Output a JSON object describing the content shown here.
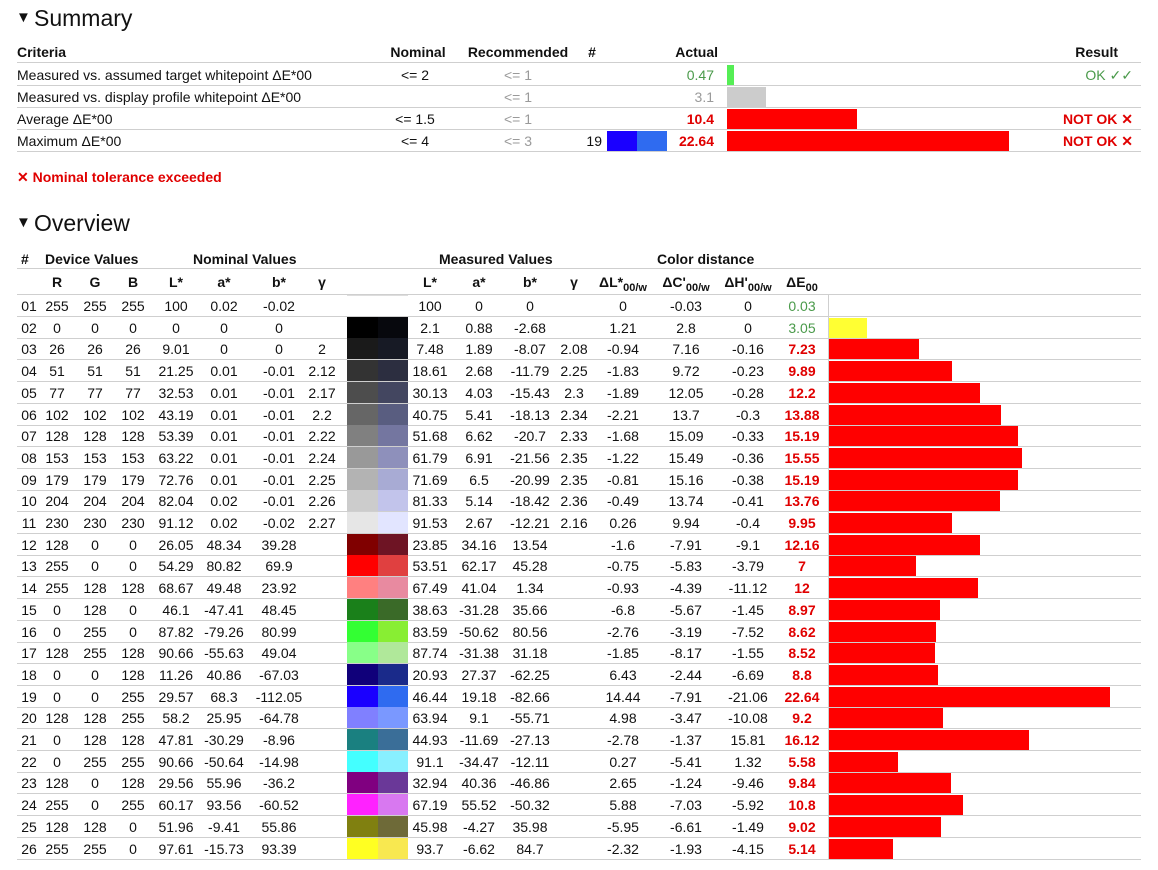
{
  "summary": {
    "title": "Summary",
    "headers": {
      "criteria": "Criteria",
      "nominal": "Nominal",
      "recommended": "Recommended",
      "num": "#",
      "actual": "Actual",
      "result": "Result"
    },
    "rows": [
      {
        "criteria": "Measured vs. assumed target whitepoint ΔE*00",
        "nominal": "<= 2",
        "recommended": "<= 1",
        "num": "",
        "actual": "0.47",
        "result": "OK ✓✓",
        "status": "ok",
        "bar_fraction": 0.025,
        "bar_color": "#55ee55"
      },
      {
        "criteria": "Measured vs. display profile whitepoint ΔE*00",
        "nominal": "",
        "recommended": "<= 1",
        "num": "",
        "actual": "3.1",
        "result": "",
        "status": "info",
        "bar_fraction": 0.14,
        "bar_color": "#cccccc"
      },
      {
        "criteria": "Average ΔE*00",
        "nominal": "<= 1.5",
        "recommended": "<= 1",
        "num": "",
        "actual": "10.4",
        "result": "NOT OK ✕",
        "status": "fail",
        "bar_fraction": 0.46,
        "bar_color": "#ff0000"
      },
      {
        "criteria": "Maximum ΔE*00",
        "nominal": "<= 4",
        "recommended": "<= 3",
        "num": "19",
        "actual": "22.64",
        "result": "NOT OK ✕",
        "status": "fail",
        "bar_fraction": 1.0,
        "bar_color": "#ff0000",
        "swatch_device": "#1a00ff",
        "swatch_measured": "#2f6bf0"
      }
    ],
    "warning": "✕ Nominal tolerance exceeded"
  },
  "overview": {
    "title": "Overview",
    "group_headers": {
      "num": "#",
      "device": "Device Values",
      "nominal": "Nominal Values",
      "measured": "Measured Values",
      "distance": "Color distance"
    },
    "sub_headers": {
      "R": "R",
      "G": "G",
      "B": "B",
      "L": "L*",
      "a": "a*",
      "b": "b*",
      "gamma": "γ",
      "mL": "L*",
      "ma": "a*",
      "mb": "b*",
      "mgamma": "γ",
      "dL": "ΔL*",
      "dC": "ΔC'",
      "dH": "ΔH'",
      "dE": "ΔE",
      "sub00w": "00/w",
      "sub00": "00"
    },
    "rows": [
      {
        "n": "01",
        "R": "255",
        "G": "255",
        "B": "255",
        "L": "100",
        "a": "0.02",
        "b": "-0.02",
        "g": "",
        "mL": "100",
        "ma": "0",
        "mb": "0",
        "mg": "",
        "dL": "0",
        "dC": "-0.03",
        "dH": "0",
        "dE": "0.03",
        "de_val": 0.03,
        "ok": true,
        "c1": "#ffffff",
        "c2": "#ffffff"
      },
      {
        "n": "02",
        "R": "0",
        "G": "0",
        "B": "0",
        "L": "0",
        "a": "0",
        "b": "0",
        "g": "",
        "mL": "2.1",
        "ma": "0.88",
        "mb": "-2.68",
        "mg": "",
        "dL": "1.21",
        "dC": "2.8",
        "dH": "0",
        "dE": "3.05",
        "de_val": 3.05,
        "ok": true,
        "c1": "#000000",
        "c2": "#07080d",
        "barColor": "#ffff33"
      },
      {
        "n": "03",
        "R": "26",
        "G": "26",
        "B": "26",
        "L": "9.01",
        "a": "0",
        "b": "0",
        "g": "2",
        "mL": "7.48",
        "ma": "1.89",
        "mb": "-8.07",
        "mg": "2.08",
        "dL": "-0.94",
        "dC": "7.16",
        "dH": "-0.16",
        "dE": "7.23",
        "de_val": 7.23,
        "ok": false,
        "c1": "#1a1a1a",
        "c2": "#171a25"
      },
      {
        "n": "04",
        "R": "51",
        "G": "51",
        "B": "51",
        "L": "21.25",
        "a": "0.01",
        "b": "-0.01",
        "g": "2.12",
        "mL": "18.61",
        "ma": "2.68",
        "mb": "-11.79",
        "mg": "2.25",
        "dL": "-1.83",
        "dC": "9.72",
        "dH": "-0.23",
        "dE": "9.89",
        "de_val": 9.89,
        "ok": false,
        "c1": "#333333",
        "c2": "#2c2e40"
      },
      {
        "n": "05",
        "R": "77",
        "G": "77",
        "B": "77",
        "L": "32.53",
        "a": "0.01",
        "b": "-0.01",
        "g": "2.17",
        "mL": "30.13",
        "ma": "4.03",
        "mb": "-15.43",
        "mg": "2.3",
        "dL": "-1.89",
        "dC": "12.05",
        "dH": "-0.28",
        "dE": "12.2",
        "de_val": 12.2,
        "ok": false,
        "c1": "#4d4d4d",
        "c2": "#434660"
      },
      {
        "n": "06",
        "R": "102",
        "G": "102",
        "B": "102",
        "L": "43.19",
        "a": "0.01",
        "b": "-0.01",
        "g": "2.2",
        "mL": "40.75",
        "ma": "5.41",
        "mb": "-18.13",
        "mg": "2.34",
        "dL": "-2.21",
        "dC": "13.7",
        "dH": "-0.3",
        "dE": "13.88",
        "de_val": 13.88,
        "ok": false,
        "c1": "#666666",
        "c2": "#595d80"
      },
      {
        "n": "07",
        "R": "128",
        "G": "128",
        "B": "128",
        "L": "53.39",
        "a": "0.01",
        "b": "-0.01",
        "g": "2.22",
        "mL": "51.68",
        "ma": "6.62",
        "mb": "-20.7",
        "mg": "2.33",
        "dL": "-1.68",
        "dC": "15.09",
        "dH": "-0.33",
        "dE": "15.19",
        "de_val": 15.19,
        "ok": false,
        "c1": "#808080",
        "c2": "#7476a0"
      },
      {
        "n": "08",
        "R": "153",
        "G": "153",
        "B": "153",
        "L": "63.22",
        "a": "0.01",
        "b": "-0.01",
        "g": "2.24",
        "mL": "61.79",
        "ma": "6.91",
        "mb": "-21.56",
        "mg": "2.35",
        "dL": "-1.22",
        "dC": "15.49",
        "dH": "-0.36",
        "dE": "15.55",
        "de_val": 15.55,
        "ok": false,
        "c1": "#999999",
        "c2": "#8e90bb"
      },
      {
        "n": "09",
        "R": "179",
        "G": "179",
        "B": "179",
        "L": "72.76",
        "a": "0.01",
        "b": "-0.01",
        "g": "2.25",
        "mL": "71.69",
        "ma": "6.5",
        "mb": "-20.99",
        "mg": "2.35",
        "dL": "-0.81",
        "dC": "15.16",
        "dH": "-0.38",
        "dE": "15.19",
        "de_val": 15.19,
        "ok": false,
        "c1": "#b3b3b3",
        "c2": "#a8abd4"
      },
      {
        "n": "10",
        "R": "204",
        "G": "204",
        "B": "204",
        "L": "82.04",
        "a": "0.02",
        "b": "-0.01",
        "g": "2.26",
        "mL": "81.33",
        "ma": "5.14",
        "mb": "-18.42",
        "mg": "2.36",
        "dL": "-0.49",
        "dC": "13.74",
        "dH": "-0.41",
        "dE": "13.76",
        "de_val": 13.76,
        "ok": false,
        "c1": "#cccccc",
        "c2": "#c2c4eb"
      },
      {
        "n": "11",
        "R": "230",
        "G": "230",
        "B": "230",
        "L": "91.12",
        "a": "0.02",
        "b": "-0.02",
        "g": "2.27",
        "mL": "91.53",
        "ma": "2.67",
        "mb": "-12.21",
        "mg": "2.16",
        "dL": "0.26",
        "dC": "9.94",
        "dH": "-0.4",
        "dE": "9.95",
        "de_val": 9.95,
        "ok": false,
        "c1": "#e6e6e6",
        "c2": "#e2e5ff"
      },
      {
        "n": "12",
        "R": "128",
        "G": "0",
        "B": "0",
        "L": "26.05",
        "a": "48.34",
        "b": "39.28",
        "g": "",
        "mL": "23.85",
        "ma": "34.16",
        "mb": "13.54",
        "mg": "",
        "dL": "-1.6",
        "dC": "-7.91",
        "dH": "-9.1",
        "dE": "12.16",
        "de_val": 12.16,
        "ok": false,
        "c1": "#800000",
        "c2": "#6e1424"
      },
      {
        "n": "13",
        "R": "255",
        "G": "0",
        "B": "0",
        "L": "54.29",
        "a": "80.82",
        "b": "69.9",
        "g": "",
        "mL": "53.51",
        "ma": "62.17",
        "mb": "45.28",
        "mg": "",
        "dL": "-0.75",
        "dC": "-5.83",
        "dH": "-3.79",
        "dE": "7",
        "de_val": 7,
        "ok": false,
        "c1": "#ff0000",
        "c2": "#e04040"
      },
      {
        "n": "14",
        "R": "255",
        "G": "128",
        "B": "128",
        "L": "68.67",
        "a": "49.48",
        "b": "23.92",
        "g": "",
        "mL": "67.49",
        "ma": "41.04",
        "mb": "1.34",
        "mg": "",
        "dL": "-0.93",
        "dC": "-4.39",
        "dH": "-11.12",
        "dE": "12",
        "de_val": 12,
        "ok": false,
        "c1": "#ff8080",
        "c2": "#e88aa0"
      },
      {
        "n": "15",
        "R": "0",
        "G": "128",
        "B": "0",
        "L": "46.1",
        "a": "-47.41",
        "b": "48.45",
        "g": "",
        "mL": "38.63",
        "ma": "-31.28",
        "mb": "35.66",
        "mg": "",
        "dL": "-6.8",
        "dC": "-5.67",
        "dH": "-1.45",
        "dE": "8.97",
        "de_val": 8.97,
        "ok": false,
        "c1": "#1a801a",
        "c2": "#3a6a28"
      },
      {
        "n": "16",
        "R": "0",
        "G": "255",
        "B": "0",
        "L": "87.82",
        "a": "-79.26",
        "b": "80.99",
        "g": "",
        "mL": "83.59",
        "ma": "-50.62",
        "mb": "80.56",
        "mg": "",
        "dL": "-2.76",
        "dC": "-3.19",
        "dH": "-7.52",
        "dE": "8.62",
        "de_val": 8.62,
        "ok": false,
        "c1": "#33ff33",
        "c2": "#88ee33"
      },
      {
        "n": "17",
        "R": "128",
        "G": "255",
        "B": "128",
        "L": "90.66",
        "a": "-55.63",
        "b": "49.04",
        "g": "",
        "mL": "87.74",
        "ma": "-31.38",
        "mb": "31.18",
        "mg": "",
        "dL": "-1.85",
        "dC": "-8.17",
        "dH": "-1.55",
        "dE": "8.52",
        "de_val": 8.52,
        "ok": false,
        "c1": "#88ff88",
        "c2": "#b0e89a"
      },
      {
        "n": "18",
        "R": "0",
        "G": "0",
        "B": "128",
        "L": "11.26",
        "a": "40.86",
        "b": "-67.03",
        "g": "",
        "mL": "20.93",
        "ma": "27.37",
        "mb": "-62.25",
        "mg": "",
        "dL": "6.43",
        "dC": "-2.44",
        "dH": "-6.69",
        "dE": "8.8",
        "de_val": 8.8,
        "ok": false,
        "c1": "#10007a",
        "c2": "#1a2a8a"
      },
      {
        "n": "19",
        "R": "0",
        "G": "0",
        "B": "255",
        "L": "29.57",
        "a": "68.3",
        "b": "-112.05",
        "g": "",
        "mL": "46.44",
        "ma": "19.18",
        "mb": "-82.66",
        "mg": "",
        "dL": "14.44",
        "dC": "-7.91",
        "dH": "-21.06",
        "dE": "22.64",
        "de_val": 22.64,
        "ok": false,
        "c1": "#1a00ff",
        "c2": "#2f6bf0"
      },
      {
        "n": "20",
        "R": "128",
        "G": "128",
        "B": "255",
        "L": "58.2",
        "a": "25.95",
        "b": "-64.78",
        "g": "",
        "mL": "63.94",
        "ma": "9.1",
        "mb": "-55.71",
        "mg": "",
        "dL": "4.98",
        "dC": "-3.47",
        "dH": "-10.08",
        "dE": "9.2",
        "de_val": 9.2,
        "ok": false,
        "c1": "#8080ff",
        "c2": "#7a98ff"
      },
      {
        "n": "21",
        "R": "0",
        "G": "128",
        "B": "128",
        "L": "47.81",
        "a": "-30.29",
        "b": "-8.96",
        "g": "",
        "mL": "44.93",
        "ma": "-11.69",
        "mb": "-27.13",
        "mg": "",
        "dL": "-2.78",
        "dC": "-1.37",
        "dH": "15.81",
        "dE": "16.12",
        "de_val": 16.12,
        "ok": false,
        "c1": "#1a8080",
        "c2": "#3a6e98"
      },
      {
        "n": "22",
        "R": "0",
        "G": "255",
        "B": "255",
        "L": "90.66",
        "a": "-50.64",
        "b": "-14.98",
        "g": "",
        "mL": "91.1",
        "ma": "-34.47",
        "mb": "-12.11",
        "mg": "",
        "dL": "0.27",
        "dC": "-5.41",
        "dH": "1.32",
        "dE": "5.58",
        "de_val": 5.58,
        "ok": false,
        "c1": "#44ffff",
        "c2": "#88f0ff"
      },
      {
        "n": "23",
        "R": "128",
        "G": "0",
        "B": "128",
        "L": "29.56",
        "a": "55.96",
        "b": "-36.2",
        "g": "",
        "mL": "32.94",
        "ma": "40.36",
        "mb": "-46.86",
        "mg": "",
        "dL": "2.65",
        "dC": "-1.24",
        "dH": "-9.46",
        "dE": "9.84",
        "de_val": 9.84,
        "ok": false,
        "c1": "#800080",
        "c2": "#6a3898"
      },
      {
        "n": "24",
        "R": "255",
        "G": "0",
        "B": "255",
        "L": "60.17",
        "a": "93.56",
        "b": "-60.52",
        "g": "",
        "mL": "67.19",
        "ma": "55.52",
        "mb": "-50.32",
        "mg": "",
        "dL": "5.88",
        "dC": "-7.03",
        "dH": "-5.92",
        "dE": "10.8",
        "de_val": 10.8,
        "ok": false,
        "c1": "#ff22ff",
        "c2": "#d878f0"
      },
      {
        "n": "25",
        "R": "128",
        "G": "128",
        "B": "0",
        "L": "51.96",
        "a": "-9.41",
        "b": "55.86",
        "g": "",
        "mL": "45.98",
        "ma": "-4.27",
        "mb": "35.98",
        "mg": "",
        "dL": "-5.95",
        "dC": "-6.61",
        "dH": "-1.49",
        "dE": "9.02",
        "de_val": 9.02,
        "ok": false,
        "c1": "#808010",
        "c2": "#6e6a38"
      },
      {
        "n": "26",
        "R": "255",
        "G": "255",
        "B": "0",
        "L": "97.61",
        "a": "-15.73",
        "b": "93.39",
        "g": "",
        "mL": "93.7",
        "ma": "-6.62",
        "mb": "84.7",
        "mg": "",
        "dL": "-2.32",
        "dC": "-1.93",
        "dH": "-4.15",
        "dE": "5.14",
        "de_val": 5.14,
        "ok": false,
        "c1": "#ffff22",
        "c2": "#f8e850"
      }
    ]
  },
  "colors": {
    "ok_green": "#4a9a4a",
    "fail_red": "#e00000",
    "bar_red": "#ff0000",
    "ok_bar": "#55ee55"
  }
}
